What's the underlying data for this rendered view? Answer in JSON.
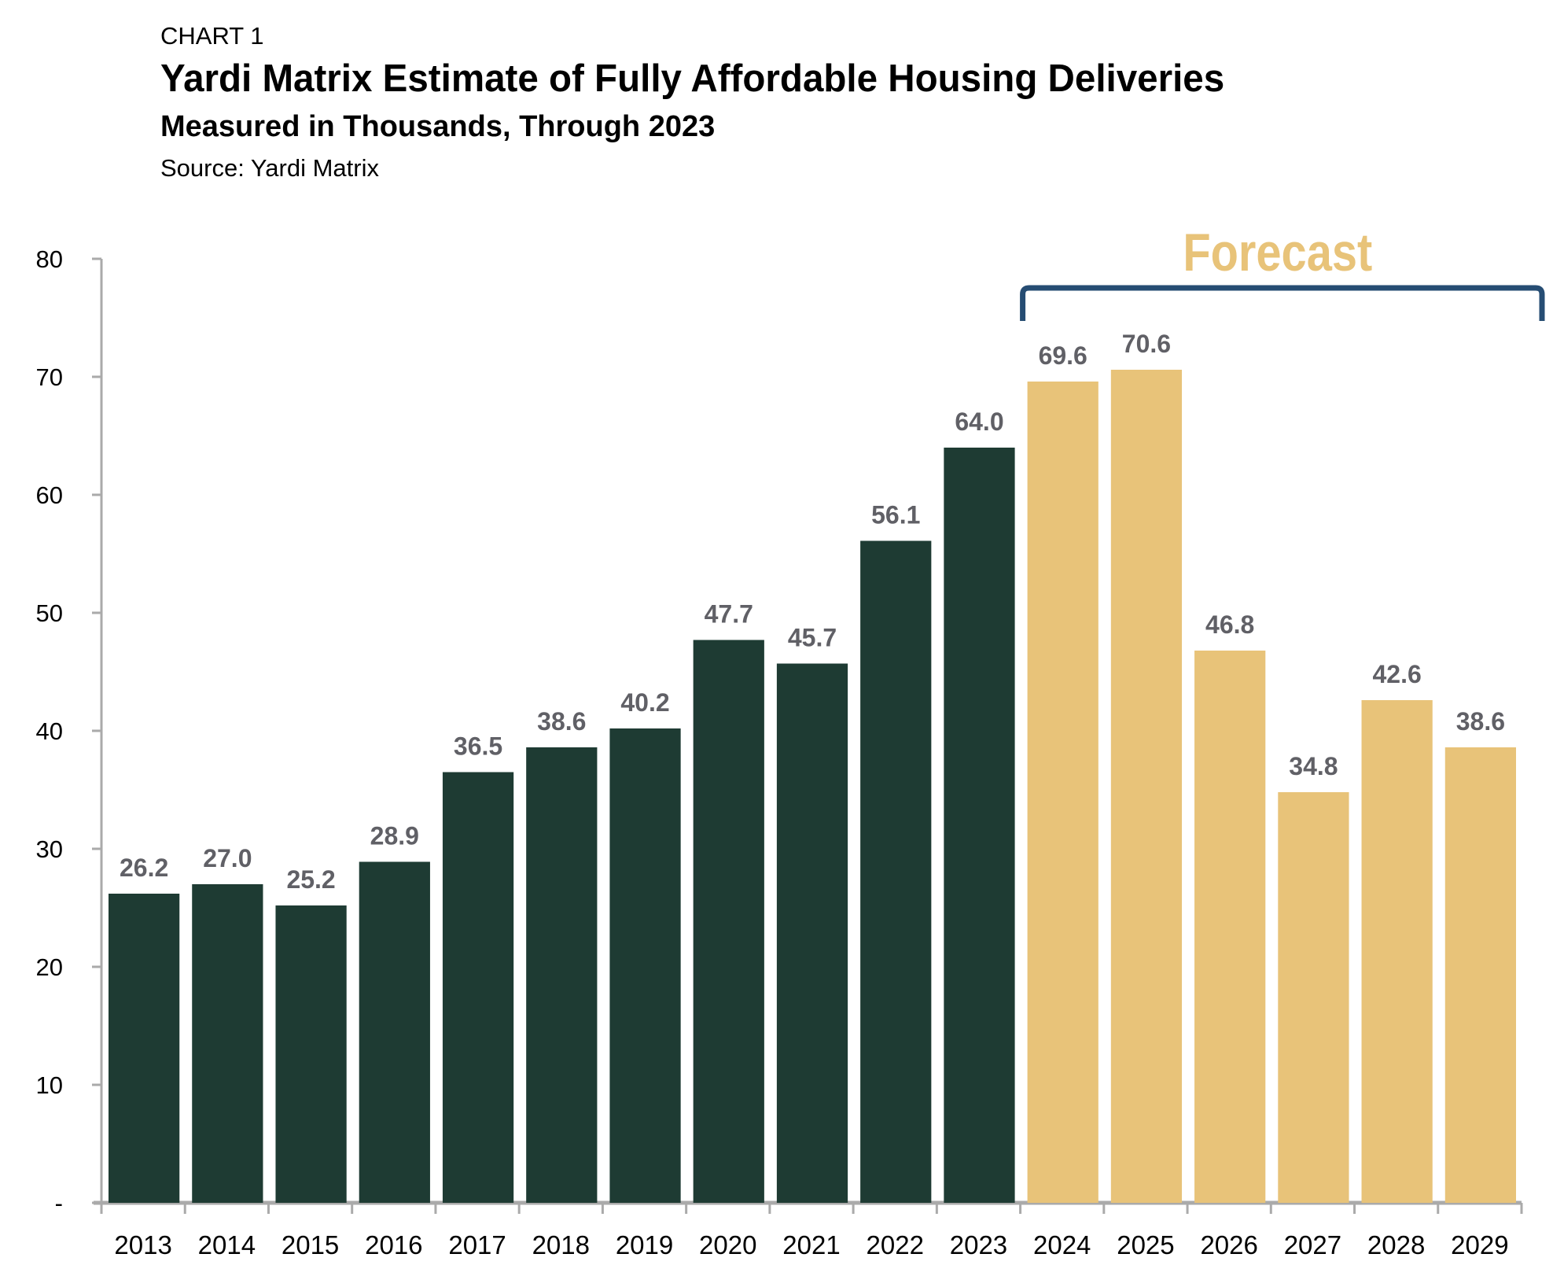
{
  "header": {
    "label": "CHART 1",
    "title": "Yardi Matrix Estimate of Fully Affordable Housing Deliveries",
    "subtitle": "Measured in Thousands, Through 2023",
    "source": "Source: Yardi Matrix"
  },
  "colors": {
    "actual": "#1e3b33",
    "forecast": "#e8c379",
    "bracket": "#264d73",
    "forecast_text": "#e8c379",
    "axis": "#aaaaaa",
    "data_label": "#606066"
  },
  "chart_data": {
    "type": "bar",
    "title": "Yardi Matrix Estimate of Fully Affordable Housing Deliveries",
    "subtitle": "Measured in Thousands, Through 2023",
    "xlabel": "",
    "ylabel": "",
    "ylim": [
      0,
      80
    ],
    "yticks": [
      0,
      10,
      20,
      30,
      40,
      50,
      60,
      70,
      80
    ],
    "ytick_labels": [
      "-",
      "10",
      "20",
      "30",
      "40",
      "50",
      "60",
      "70",
      "80"
    ],
    "grid": false,
    "categories": [
      "2013",
      "2014",
      "2015",
      "2016",
      "2017",
      "2018",
      "2019",
      "2020",
      "2021",
      "2022",
      "2023",
      "2024",
      "2025",
      "2026",
      "2027",
      "2028",
      "2029"
    ],
    "values": [
      26.2,
      27.0,
      25.2,
      28.9,
      36.5,
      38.6,
      40.2,
      47.7,
      45.7,
      56.1,
      64.0,
      69.6,
      70.6,
      46.8,
      34.8,
      42.6,
      38.6
    ],
    "data_labels": [
      "26.2",
      "27.0",
      "25.2",
      "28.9",
      "36.5",
      "38.6",
      "40.2",
      "47.7",
      "45.7",
      "56.1",
      "64.0",
      "69.6",
      "70.6",
      "46.8",
      "34.8",
      "42.6",
      "38.6"
    ],
    "series_type": [
      "actual",
      "actual",
      "actual",
      "actual",
      "actual",
      "actual",
      "actual",
      "actual",
      "actual",
      "actual",
      "actual",
      "forecast",
      "forecast",
      "forecast",
      "forecast",
      "forecast",
      "forecast"
    ],
    "annotation": {
      "text": "Forecast",
      "range": [
        "2024",
        "2029"
      ]
    }
  }
}
